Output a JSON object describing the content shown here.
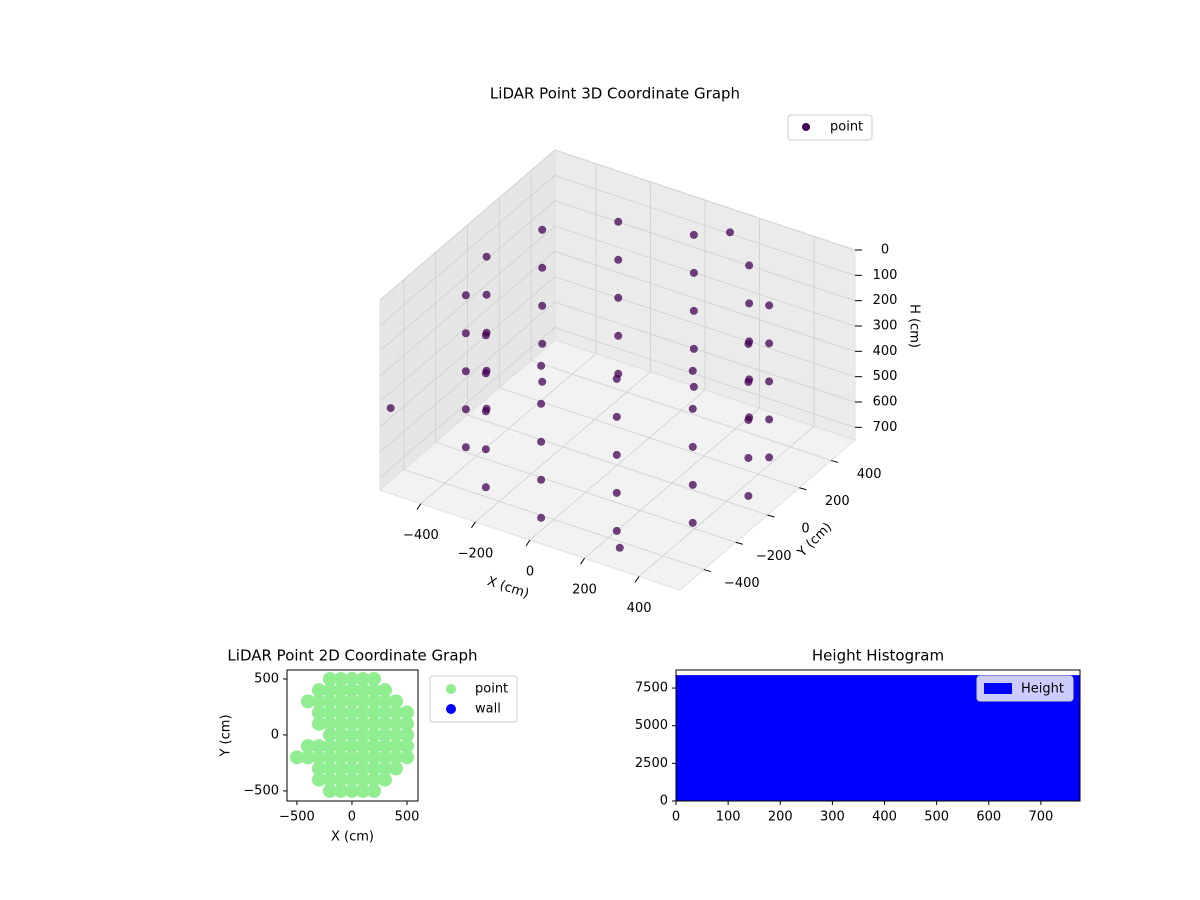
{
  "chart_data": [
    {
      "type": "scatter3d",
      "title": "LiDAR Point 3D Coordinate Graph",
      "xlabel": "X (cm)",
      "ylabel": "Y (cm)",
      "zlabel": "H (cm)",
      "xlim": [
        -550,
        550
      ],
      "ylim": [
        -550,
        550
      ],
      "zlim": [
        0,
        750
      ],
      "zinverted": true,
      "xticks": [
        {
          "value": -400,
          "label": "−400"
        },
        {
          "value": -200,
          "label": "−200"
        },
        0,
        200,
        400
      ],
      "yticks": [
        {
          "value": -400,
          "label": "−400"
        },
        {
          "value": -200,
          "label": "−200"
        },
        0,
        200,
        400
      ],
      "zticks": [
        0,
        100,
        200,
        300,
        400,
        500,
        600,
        700
      ],
      "grid": true,
      "legend": "upper right",
      "series": [
        {
          "name": "point",
          "color": "#440154",
          "x": [
            480,
            416,
            240,
            0,
            -240,
            -416,
            -480,
            -416,
            -240,
            0,
            240,
            416,
            480,
            416,
            240,
            0,
            -240,
            -416,
            -480,
            -416,
            -240,
            0,
            240,
            416,
            480,
            416,
            240,
            0,
            -240,
            -416,
            -480,
            -416,
            -240,
            0,
            240,
            416,
            480,
            416,
            240,
            0,
            -240,
            -416,
            -480,
            -416,
            -240,
            0,
            240,
            416,
            480,
            416,
            240,
            0,
            -240,
            -416,
            -480,
            -416,
            -240,
            0,
            240,
            416,
            -540,
            150,
            300
          ],
          "y": [
            0,
            240,
            416,
            480,
            416,
            240,
            0,
            -240,
            -416,
            -480,
            -416,
            -240,
            0,
            240,
            416,
            480,
            416,
            240,
            0,
            -240,
            -416,
            -480,
            -416,
            -240,
            0,
            240,
            416,
            480,
            416,
            240,
            0,
            -240,
            -416,
            -480,
            -416,
            -240,
            0,
            240,
            416,
            480,
            416,
            240,
            0,
            -240,
            -416,
            -480,
            -416,
            -240,
            0,
            240,
            416,
            480,
            416,
            240,
            0,
            -240,
            -416,
            -480,
            -416,
            -240,
            -500,
            450,
            -500
          ],
          "z": [
            100,
            100,
            100,
            100,
            100,
            100,
            100,
            100,
            100,
            100,
            100,
            100,
            250,
            250,
            250,
            250,
            250,
            250,
            250,
            250,
            250,
            250,
            250,
            250,
            400,
            400,
            400,
            400,
            400,
            400,
            400,
            400,
            400,
            400,
            400,
            400,
            550,
            550,
            550,
            550,
            550,
            550,
            550,
            550,
            550,
            550,
            550,
            550,
            700,
            700,
            700,
            700,
            700,
            700,
            700,
            700,
            700,
            700,
            700,
            700,
            450,
            20,
            700
          ]
        }
      ]
    },
    {
      "type": "scatter",
      "title": "LiDAR Point 2D Coordinate Graph",
      "xlabel": "X (cm)",
      "ylabel": "Y (cm)",
      "xlim": [
        -590,
        600
      ],
      "ylim": [
        -590,
        580
      ],
      "xticks": [
        {
          "value": -500,
          "label": "−500"
        },
        0,
        500
      ],
      "yticks": [
        {
          "value": -500,
          "label": "−500"
        },
        0,
        500
      ],
      "legend": "outside right",
      "series": [
        {
          "name": "point",
          "color": "#90ee90",
          "x": [
            -200,
            -100,
            0,
            100,
            200,
            -300,
            -200,
            -100,
            0,
            100,
            200,
            300,
            -400,
            -300,
            -200,
            -100,
            0,
            100,
            200,
            300,
            400,
            -300,
            -200,
            -100,
            0,
            100,
            200,
            300,
            400,
            500,
            -300,
            -200,
            -100,
            0,
            100,
            200,
            300,
            400,
            500,
            -200,
            -100,
            0,
            100,
            200,
            300,
            400,
            500,
            -400,
            -300,
            -200,
            -100,
            0,
            100,
            200,
            300,
            400,
            500,
            -500,
            -400,
            -300,
            -200,
            -100,
            0,
            100,
            200,
            300,
            400,
            500,
            -300,
            -200,
            -100,
            0,
            100,
            200,
            300,
            400,
            -300,
            -200,
            -100,
            0,
            100,
            200,
            300,
            -200,
            -100,
            0,
            100,
            200
          ],
          "y": [
            500,
            500,
            500,
            500,
            500,
            400,
            400,
            400,
            400,
            400,
            400,
            400,
            300,
            300,
            300,
            300,
            300,
            300,
            300,
            300,
            300,
            200,
            200,
            200,
            200,
            200,
            200,
            200,
            200,
            200,
            100,
            100,
            100,
            100,
            100,
            100,
            100,
            100,
            100,
            0,
            0,
            0,
            0,
            0,
            0,
            0,
            0,
            -100,
            -100,
            -100,
            -100,
            -100,
            -100,
            -100,
            -100,
            -100,
            -100,
            -200,
            -200,
            -200,
            -200,
            -200,
            -200,
            -200,
            -200,
            -200,
            -200,
            -200,
            -300,
            -300,
            -300,
            -300,
            -300,
            -300,
            -300,
            -300,
            -400,
            -400,
            -400,
            -400,
            -400,
            -400,
            -400,
            -500,
            -500,
            -500,
            -500,
            -500
          ]
        },
        {
          "name": "wall",
          "color": "#0000ff",
          "x": [],
          "y": []
        }
      ]
    },
    {
      "type": "histogram",
      "title": "Height Histogram",
      "name": "Height",
      "color": "#0000ff",
      "bins": [
        0,
        775
      ],
      "counts": [
        8360
      ],
      "xlim": [
        0,
        775
      ],
      "ylim": [
        0,
        8700
      ],
      "xticks": [
        0,
        100,
        200,
        300,
        400,
        500,
        600,
        700
      ],
      "yticks": [
        0,
        2500,
        5000,
        7500
      ],
      "legend": "upper right"
    }
  ]
}
